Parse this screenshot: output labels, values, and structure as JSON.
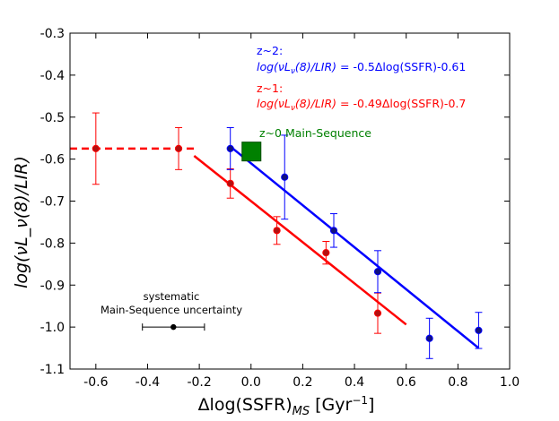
{
  "chart_data": {
    "type": "scatter",
    "xlabel": "Δlog(SSFR)_MS [Gyr⁻¹]",
    "xlabel_parts": {
      "main": "Δlog(SSFR)",
      "sub": "MS",
      "unit_open": " [Gyr",
      "unit_sup": "−1",
      "unit_close": "]"
    },
    "ylabel": "log(νL_ν(8)/LIR)",
    "xlim": [
      -0.7,
      1.0
    ],
    "ylim": [
      -1.1,
      -0.3
    ],
    "xticks": [
      -0.6,
      -0.4,
      -0.2,
      0.0,
      0.2,
      0.4,
      0.6,
      0.8,
      1.0
    ],
    "xtick_labels": [
      "-0.6",
      "-0.4",
      "-0.2",
      "0.0",
      "0.2",
      "0.4",
      "0.6",
      "0.8",
      "1.0"
    ],
    "yticks": [
      -1.1,
      -1.0,
      -0.9,
      -0.8,
      -0.7,
      -0.6,
      -0.5,
      -0.4,
      -0.3
    ],
    "ytick_labels": [
      "-1.1",
      "-1.0",
      "-0.9",
      "-0.8",
      "-0.7",
      "-0.6",
      "-0.5",
      "-0.4",
      "-0.3"
    ],
    "colors": {
      "z2": "#0000ff",
      "z1": "#ff0000",
      "z0": "#008000",
      "sys": "#000000"
    },
    "series": [
      {
        "name": "z~1",
        "color": "#ff0000",
        "points": [
          {
            "x": -0.6,
            "y": -0.575,
            "yerr": 0.085
          },
          {
            "x": -0.28,
            "y": -0.575,
            "yerr": 0.05
          },
          {
            "x": -0.08,
            "y": -0.658,
            "yerr": 0.035
          },
          {
            "x": 0.1,
            "y": -0.77,
            "yerr": 0.033
          },
          {
            "x": 0.29,
            "y": -0.823,
            "yerr": 0.027
          },
          {
            "x": 0.49,
            "y": -0.967,
            "yerr": 0.048
          }
        ],
        "fit": {
          "slope": -0.49,
          "intercept": -0.7,
          "x_range": [
            -0.22,
            0.6
          ]
        },
        "plateau": {
          "y": -0.575,
          "x_range": [
            -0.7,
            -0.22
          ]
        }
      },
      {
        "name": "z~2",
        "color": "#0000ff",
        "points": [
          {
            "x": -0.08,
            "y": -0.575,
            "yerr": 0.05
          },
          {
            "x": 0.13,
            "y": -0.643,
            "yerr": 0.1
          },
          {
            "x": 0.32,
            "y": -0.77,
            "yerr": 0.04
          },
          {
            "x": 0.49,
            "y": -0.868,
            "yerr": 0.05
          },
          {
            "x": 0.69,
            "y": -1.027,
            "yerr": 0.048
          },
          {
            "x": 0.88,
            "y": -1.008,
            "yerr": 0.043
          }
        ],
        "fit": {
          "slope": -0.5,
          "intercept": -0.61,
          "x_range": [
            -0.08,
            0.88
          ]
        }
      }
    ],
    "main_sequence_marker": {
      "label": "z~0 Main-Sequence",
      "x": 0.0,
      "y": -0.583,
      "color": "#008000"
    },
    "systematic": {
      "x": -0.3,
      "y": -1.0,
      "xerr": 0.12,
      "label_line1": "systematic",
      "label_line2": "Main-Sequence uncertainty"
    },
    "annotations": {
      "z2_label": "z~2:",
      "z2_eq_lhs": "log(νL",
      "z2_eq_sub": "ν",
      "z2_eq_mid": "(8)/LIR)",
      "z2_eq_rhs": " = -0.5Δlog(SSFR)-0.61",
      "z1_label": "z~1:",
      "z1_eq_lhs": "log(νL",
      "z1_eq_sub": "ν",
      "z1_eq_mid": "(8)/LIR)",
      "z1_eq_rhs": " = -0.49Δlog(SSFR)-0.7"
    }
  }
}
